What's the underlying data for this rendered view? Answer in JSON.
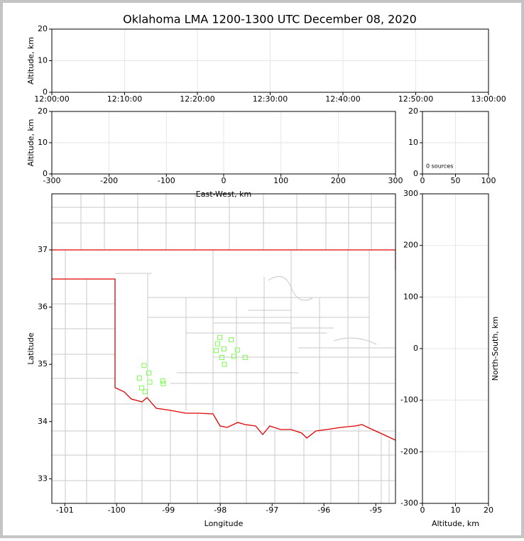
{
  "chart_data": [
    {
      "type": "scatter",
      "title": "Oklahoma LMA 1200-1300 UTC December 08, 2020",
      "ylabel": "Altitude, km",
      "xlim": [
        "12:00:00",
        "13:00:00"
      ],
      "xticks": [
        "12:00:00",
        "12:10:00",
        "12:20:00",
        "12:30:00",
        "12:40:00",
        "12:50:00",
        "13:00:00"
      ],
      "ylim": [
        0,
        20
      ],
      "yticks": [
        0,
        10,
        20
      ],
      "grid": true
    },
    {
      "type": "scatter",
      "xlabel": "East-West, km",
      "ylabel": "Altitude, km",
      "xlim": [
        -300,
        300
      ],
      "xticks": [
        -300,
        -200,
        -100,
        0,
        100,
        200,
        300
      ],
      "ylim": [
        0,
        20
      ],
      "yticks": [
        0,
        10,
        20
      ],
      "grid": true
    },
    {
      "type": "scatter",
      "annotation": "0 sources",
      "xlim": [
        0,
        100
      ],
      "xticks": [
        0,
        50,
        100
      ],
      "ylim": [
        0,
        20
      ],
      "yticks": [
        0,
        10,
        20
      ],
      "grid": true
    },
    {
      "type": "scatter",
      "xlabel": "Longitude",
      "ylabel": "Latitude",
      "xlim": [
        -101.25,
        -94.62
      ],
      "xticks": [
        -101,
        -100,
        -99,
        -98,
        -97,
        -96,
        -95
      ],
      "ylim": [
        32.57,
        37.98
      ],
      "yticks": [
        33,
        34,
        35,
        36,
        37
      ],
      "grid": false,
      "color": "#7cfc50",
      "x": [
        -98.01,
        -97.79,
        -98.05,
        -97.93,
        -98.08,
        -97.67,
        -97.97,
        -97.74,
        -97.52,
        -97.92,
        -99.47,
        -99.38,
        -99.56,
        -99.36,
        -99.11,
        -99.1,
        -99.52,
        -99.45
      ],
      "values": [
        35.47,
        35.43,
        35.36,
        35.27,
        35.24,
        35.25,
        35.12,
        35.14,
        35.12,
        35.0,
        34.98,
        34.85,
        34.76,
        34.69,
        34.71,
        34.66,
        34.59,
        34.52
      ]
    },
    {
      "type": "scatter",
      "xlabel": "Altitude, km",
      "ylabel": "North-South, km",
      "ylabel_position": "right",
      "xlim": [
        0,
        20
      ],
      "xticks": [
        0,
        10,
        20
      ],
      "ylim": [
        -300,
        300
      ],
      "yticks": [
        -300,
        -200,
        -100,
        0,
        100,
        200,
        300
      ],
      "grid": true
    }
  ]
}
